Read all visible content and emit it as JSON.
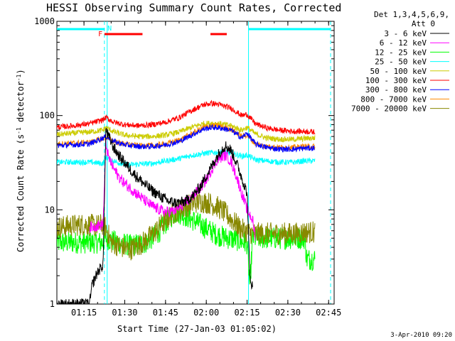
{
  "chart_data": {
    "type": "line",
    "title": "HESSI Observing Summary Count Rates, Corrected",
    "xlabel": "Start Time (27-Jan-03 01:05:02)",
    "ylabel_main": "Corrected Count Rate (s",
    "ylabel_sup1": "-1",
    "ylabel_mid": " detector",
    "ylabel_sup2": "-1",
    "ylabel_end": ")",
    "x_unit": "minutes from 01:05:02",
    "xlim": [
      0,
      102
    ],
    "ylim": [
      1,
      1000
    ],
    "y_scale": "log",
    "x_ticks": [
      {
        "label": "01:15",
        "x": 9.97
      },
      {
        "label": "01:30",
        "x": 24.97
      },
      {
        "label": "01:45",
        "x": 39.97
      },
      {
        "label": "02:00",
        "x": 54.97
      },
      {
        "label": "02:15",
        "x": 69.97
      },
      {
        "label": "02:30",
        "x": 84.97
      },
      {
        "label": "02:45",
        "x": 99.97
      }
    ],
    "y_ticks": [
      {
        "label": "1",
        "y": 1
      },
      {
        "label": "10",
        "y": 10
      },
      {
        "label": "100",
        "y": 100
      },
      {
        "label": "1000",
        "y": 1000
      }
    ],
    "legend": {
      "placement": "right",
      "header_line1": "Det 1,3,4,5,6,9,",
      "header_line2": "Att 0"
    },
    "vertical_lines": [
      {
        "x": 17.5,
        "style": "dashed",
        "color": "#00ffff"
      },
      {
        "x": 18.5,
        "style": "solid",
        "color": "#00ffff"
      },
      {
        "x": 70.5,
        "style": "solid",
        "color": "#00ffff"
      },
      {
        "x": 100.7,
        "style": "dashed",
        "color": "#00ffff"
      }
    ],
    "status_bars": [
      {
        "label": "N",
        "color": "#00ffff",
        "segments": [
          [
            0,
            17.5
          ],
          [
            70.5,
            100.7
          ]
        ],
        "label_x": 18.6
      },
      {
        "label": "F",
        "color": "#ff0000",
        "segments": [
          [
            17.5,
            31.5
          ],
          [
            56.5,
            62.5
          ]
        ],
        "label_x": 15.2
      }
    ],
    "series": [
      {
        "name": "3 - 6 keV",
        "color": "#000000",
        "points": [
          [
            0,
            1
          ],
          [
            12,
            1
          ],
          [
            13,
            1.6
          ],
          [
            15,
            2.2
          ],
          [
            17,
            2.6
          ],
          [
            18,
            70
          ],
          [
            19.5,
            56
          ],
          [
            21,
            45
          ],
          [
            23,
            37
          ],
          [
            26,
            29
          ],
          [
            29,
            23
          ],
          [
            32,
            19
          ],
          [
            35,
            16
          ],
          [
            38,
            14
          ],
          [
            41,
            12.3
          ],
          [
            44,
            11.8
          ],
          [
            47,
            12.2
          ],
          [
            50,
            14
          ],
          [
            53,
            18
          ],
          [
            55,
            23
          ],
          [
            57,
            29
          ],
          [
            59,
            37
          ],
          [
            61,
            45
          ],
          [
            62,
            48
          ],
          [
            64,
            43
          ],
          [
            66,
            32
          ],
          [
            68,
            22
          ],
          [
            70,
            15
          ],
          [
            71,
            2
          ],
          [
            72,
            1.5
          ]
        ],
        "tail_from": 72
      },
      {
        "name": "6 - 12 keV",
        "color": "#ff00ff",
        "points": [
          [
            12,
            6.5
          ],
          [
            17,
            7
          ],
          [
            18,
            50
          ],
          [
            19,
            36
          ],
          [
            21,
            27
          ],
          [
            23,
            22
          ],
          [
            25,
            19
          ],
          [
            28,
            16
          ],
          [
            31,
            13.5
          ],
          [
            34,
            11.5
          ],
          [
            37,
            10.2
          ],
          [
            40,
            9.5
          ],
          [
            43,
            9.7
          ],
          [
            46,
            11
          ],
          [
            49,
            13
          ],
          [
            52,
            16
          ],
          [
            55,
            21
          ],
          [
            57,
            27
          ],
          [
            59,
            34
          ],
          [
            61,
            37
          ],
          [
            62,
            38
          ],
          [
            64,
            33
          ],
          [
            66,
            23
          ],
          [
            68,
            15
          ],
          [
            70,
            10
          ],
          [
            72,
            7.8
          ],
          [
            73,
            5.2
          ]
        ]
      },
      {
        "name": "12 - 25 keV",
        "color": "#00ff00",
        "points": [
          [
            0,
            4.5
          ],
          [
            5,
            4.5
          ],
          [
            10,
            4.5
          ],
          [
            15,
            4.5
          ],
          [
            17,
            4.5
          ],
          [
            18,
            5
          ],
          [
            22,
            4.5
          ],
          [
            27,
            4.2
          ],
          [
            32,
            4.4
          ],
          [
            35,
            5
          ],
          [
            38,
            6
          ],
          [
            40,
            7.2
          ],
          [
            42,
            8.5
          ],
          [
            44,
            9.4
          ],
          [
            46,
            9
          ],
          [
            48,
            8.4
          ],
          [
            50,
            7.8
          ],
          [
            52,
            7.2
          ],
          [
            54,
            6.6
          ],
          [
            56,
            6.1
          ],
          [
            58,
            5.6
          ],
          [
            60,
            5.3
          ],
          [
            63,
            5
          ],
          [
            66,
            4.8
          ],
          [
            69,
            4.5
          ],
          [
            70,
            4.4
          ],
          [
            71,
            1.5
          ],
          [
            72,
            5
          ],
          [
            76,
            5
          ],
          [
            80,
            5
          ],
          [
            84,
            5
          ],
          [
            88,
            5
          ],
          [
            91,
            5
          ],
          [
            92,
            3
          ],
          [
            95,
            3
          ]
        ]
      },
      {
        "name": "25 - 50 keV",
        "color": "#00ffff",
        "points": [
          [
            0,
            32
          ],
          [
            6,
            32
          ],
          [
            12,
            32
          ],
          [
            17,
            31
          ],
          [
            18,
            36
          ],
          [
            22,
            32
          ],
          [
            26,
            30
          ],
          [
            30,
            30.5
          ],
          [
            35,
            31
          ],
          [
            40,
            33
          ],
          [
            45,
            35
          ],
          [
            50,
            38
          ],
          [
            55,
            40
          ],
          [
            60,
            41
          ],
          [
            64,
            40
          ],
          [
            68,
            37
          ],
          [
            70,
            38
          ],
          [
            73,
            34
          ],
          [
            77,
            33
          ],
          [
            82,
            32
          ],
          [
            87,
            32
          ],
          [
            91,
            33
          ],
          [
            95,
            33
          ]
        ]
      },
      {
        "name": "50 - 100 keV",
        "color": "#cccc00",
        "points": [
          [
            0,
            63
          ],
          [
            6,
            65
          ],
          [
            12,
            67
          ],
          [
            17,
            70
          ],
          [
            18,
            75
          ],
          [
            21,
            67
          ],
          [
            25,
            62
          ],
          [
            30,
            60
          ],
          [
            35,
            60
          ],
          [
            40,
            62
          ],
          [
            45,
            67
          ],
          [
            50,
            76
          ],
          [
            54,
            82
          ],
          [
            57,
            83
          ],
          [
            60,
            82
          ],
          [
            64,
            78
          ],
          [
            68,
            70
          ],
          [
            70,
            75
          ],
          [
            73,
            64
          ],
          [
            77,
            58
          ],
          [
            82,
            56
          ],
          [
            87,
            56
          ],
          [
            91,
            57
          ],
          [
            95,
            58
          ]
        ]
      },
      {
        "name": "100 - 300 keV",
        "color": "#ff0000",
        "points": [
          [
            0,
            75
          ],
          [
            6,
            78
          ],
          [
            12,
            82
          ],
          [
            17,
            90
          ],
          [
            18,
            95
          ],
          [
            21,
            85
          ],
          [
            25,
            80
          ],
          [
            30,
            78
          ],
          [
            35,
            80
          ],
          [
            40,
            85
          ],
          [
            45,
            95
          ],
          [
            50,
            115
          ],
          [
            54,
            130
          ],
          [
            57,
            135
          ],
          [
            60,
            130
          ],
          [
            64,
            120
          ],
          [
            68,
            100
          ],
          [
            70,
            103
          ],
          [
            73,
            82
          ],
          [
            77,
            74
          ],
          [
            82,
            70
          ],
          [
            87,
            68
          ],
          [
            91,
            68
          ],
          [
            95,
            67
          ]
        ]
      },
      {
        "name": "300 - 800 keV",
        "color": "#0000ff",
        "points": [
          [
            0,
            48
          ],
          [
            6,
            49
          ],
          [
            12,
            50
          ],
          [
            17,
            58
          ],
          [
            18,
            60
          ],
          [
            21,
            53
          ],
          [
            25,
            49
          ],
          [
            30,
            47
          ],
          [
            35,
            47
          ],
          [
            40,
            49
          ],
          [
            45,
            53
          ],
          [
            50,
            63
          ],
          [
            54,
            72
          ],
          [
            57,
            75
          ],
          [
            60,
            74
          ],
          [
            64,
            70
          ],
          [
            68,
            58
          ],
          [
            70,
            65
          ],
          [
            73,
            50
          ],
          [
            77,
            46
          ],
          [
            82,
            44
          ],
          [
            87,
            44
          ],
          [
            91,
            45
          ],
          [
            95,
            45
          ]
        ]
      },
      {
        "name": "800 - 7000 keV",
        "color": "#ff8800",
        "points": [
          [
            0,
            50
          ],
          [
            6,
            51
          ],
          [
            12,
            52
          ],
          [
            17,
            57
          ],
          [
            18,
            59
          ],
          [
            21,
            53
          ],
          [
            25,
            50
          ],
          [
            30,
            48
          ],
          [
            35,
            48
          ],
          [
            40,
            50
          ],
          [
            45,
            55
          ],
          [
            50,
            65
          ],
          [
            54,
            75
          ],
          [
            57,
            78
          ],
          [
            60,
            77
          ],
          [
            64,
            72
          ],
          [
            68,
            60
          ],
          [
            70,
            62
          ],
          [
            73,
            50
          ],
          [
            77,
            47
          ],
          [
            82,
            46
          ],
          [
            87,
            46
          ],
          [
            91,
            47
          ],
          [
            95,
            47
          ]
        ]
      },
      {
        "name": "7000 - 20000 keV",
        "color": "#888800",
        "points": [
          [
            0,
            6.5
          ],
          [
            5,
            6.8
          ],
          [
            10,
            7
          ],
          [
            14,
            6.8
          ],
          [
            17,
            7
          ],
          [
            18,
            6.5
          ],
          [
            20,
            4.5
          ],
          [
            24,
            4
          ],
          [
            27,
            3.8
          ],
          [
            30,
            4.2
          ],
          [
            33,
            4.8
          ],
          [
            36,
            5.8
          ],
          [
            39,
            7.2
          ],
          [
            42,
            8.8
          ],
          [
            45,
            10
          ],
          [
            48,
            11
          ],
          [
            51,
            12
          ],
          [
            53,
            12.2
          ],
          [
            56,
            11.8
          ],
          [
            59,
            10.8
          ],
          [
            62,
            9.2
          ],
          [
            64,
            8
          ],
          [
            66,
            7
          ],
          [
            68,
            6.2
          ],
          [
            70,
            5.8
          ],
          [
            72,
            5.6
          ],
          [
            76,
            5.6
          ],
          [
            80,
            5.6
          ],
          [
            84,
            5.6
          ],
          [
            88,
            5.6
          ],
          [
            91,
            5.8
          ],
          [
            95,
            5.8
          ]
        ]
      }
    ],
    "timestamp": "3-Apr-2010 09:20"
  }
}
